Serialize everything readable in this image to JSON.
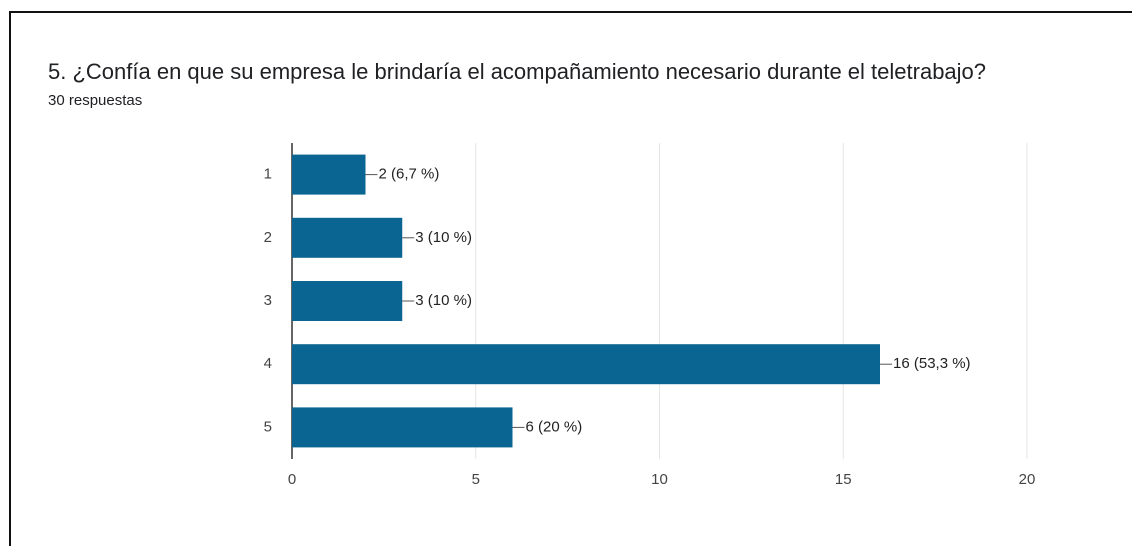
{
  "chart_data": {
    "type": "bar",
    "orientation": "horizontal",
    "title": "5. ¿Confía en que su empresa le brindaría el acompañamiento necesario durante el  teletrabajo?",
    "subtitle": "30 respuestas",
    "categories": [
      "1",
      "2",
      "3",
      "4",
      "5"
    ],
    "values": [
      2,
      3,
      3,
      16,
      6
    ],
    "value_labels": [
      "2 (6,7 %)",
      "3 (10 %)",
      "3 (10 %)",
      "16 (53,3 %)",
      "6 (20 %)"
    ],
    "color": "#0b6592",
    "xlim": [
      0,
      20
    ],
    "xticks": [
      0,
      5,
      10,
      15,
      20
    ],
    "grid": true
  }
}
